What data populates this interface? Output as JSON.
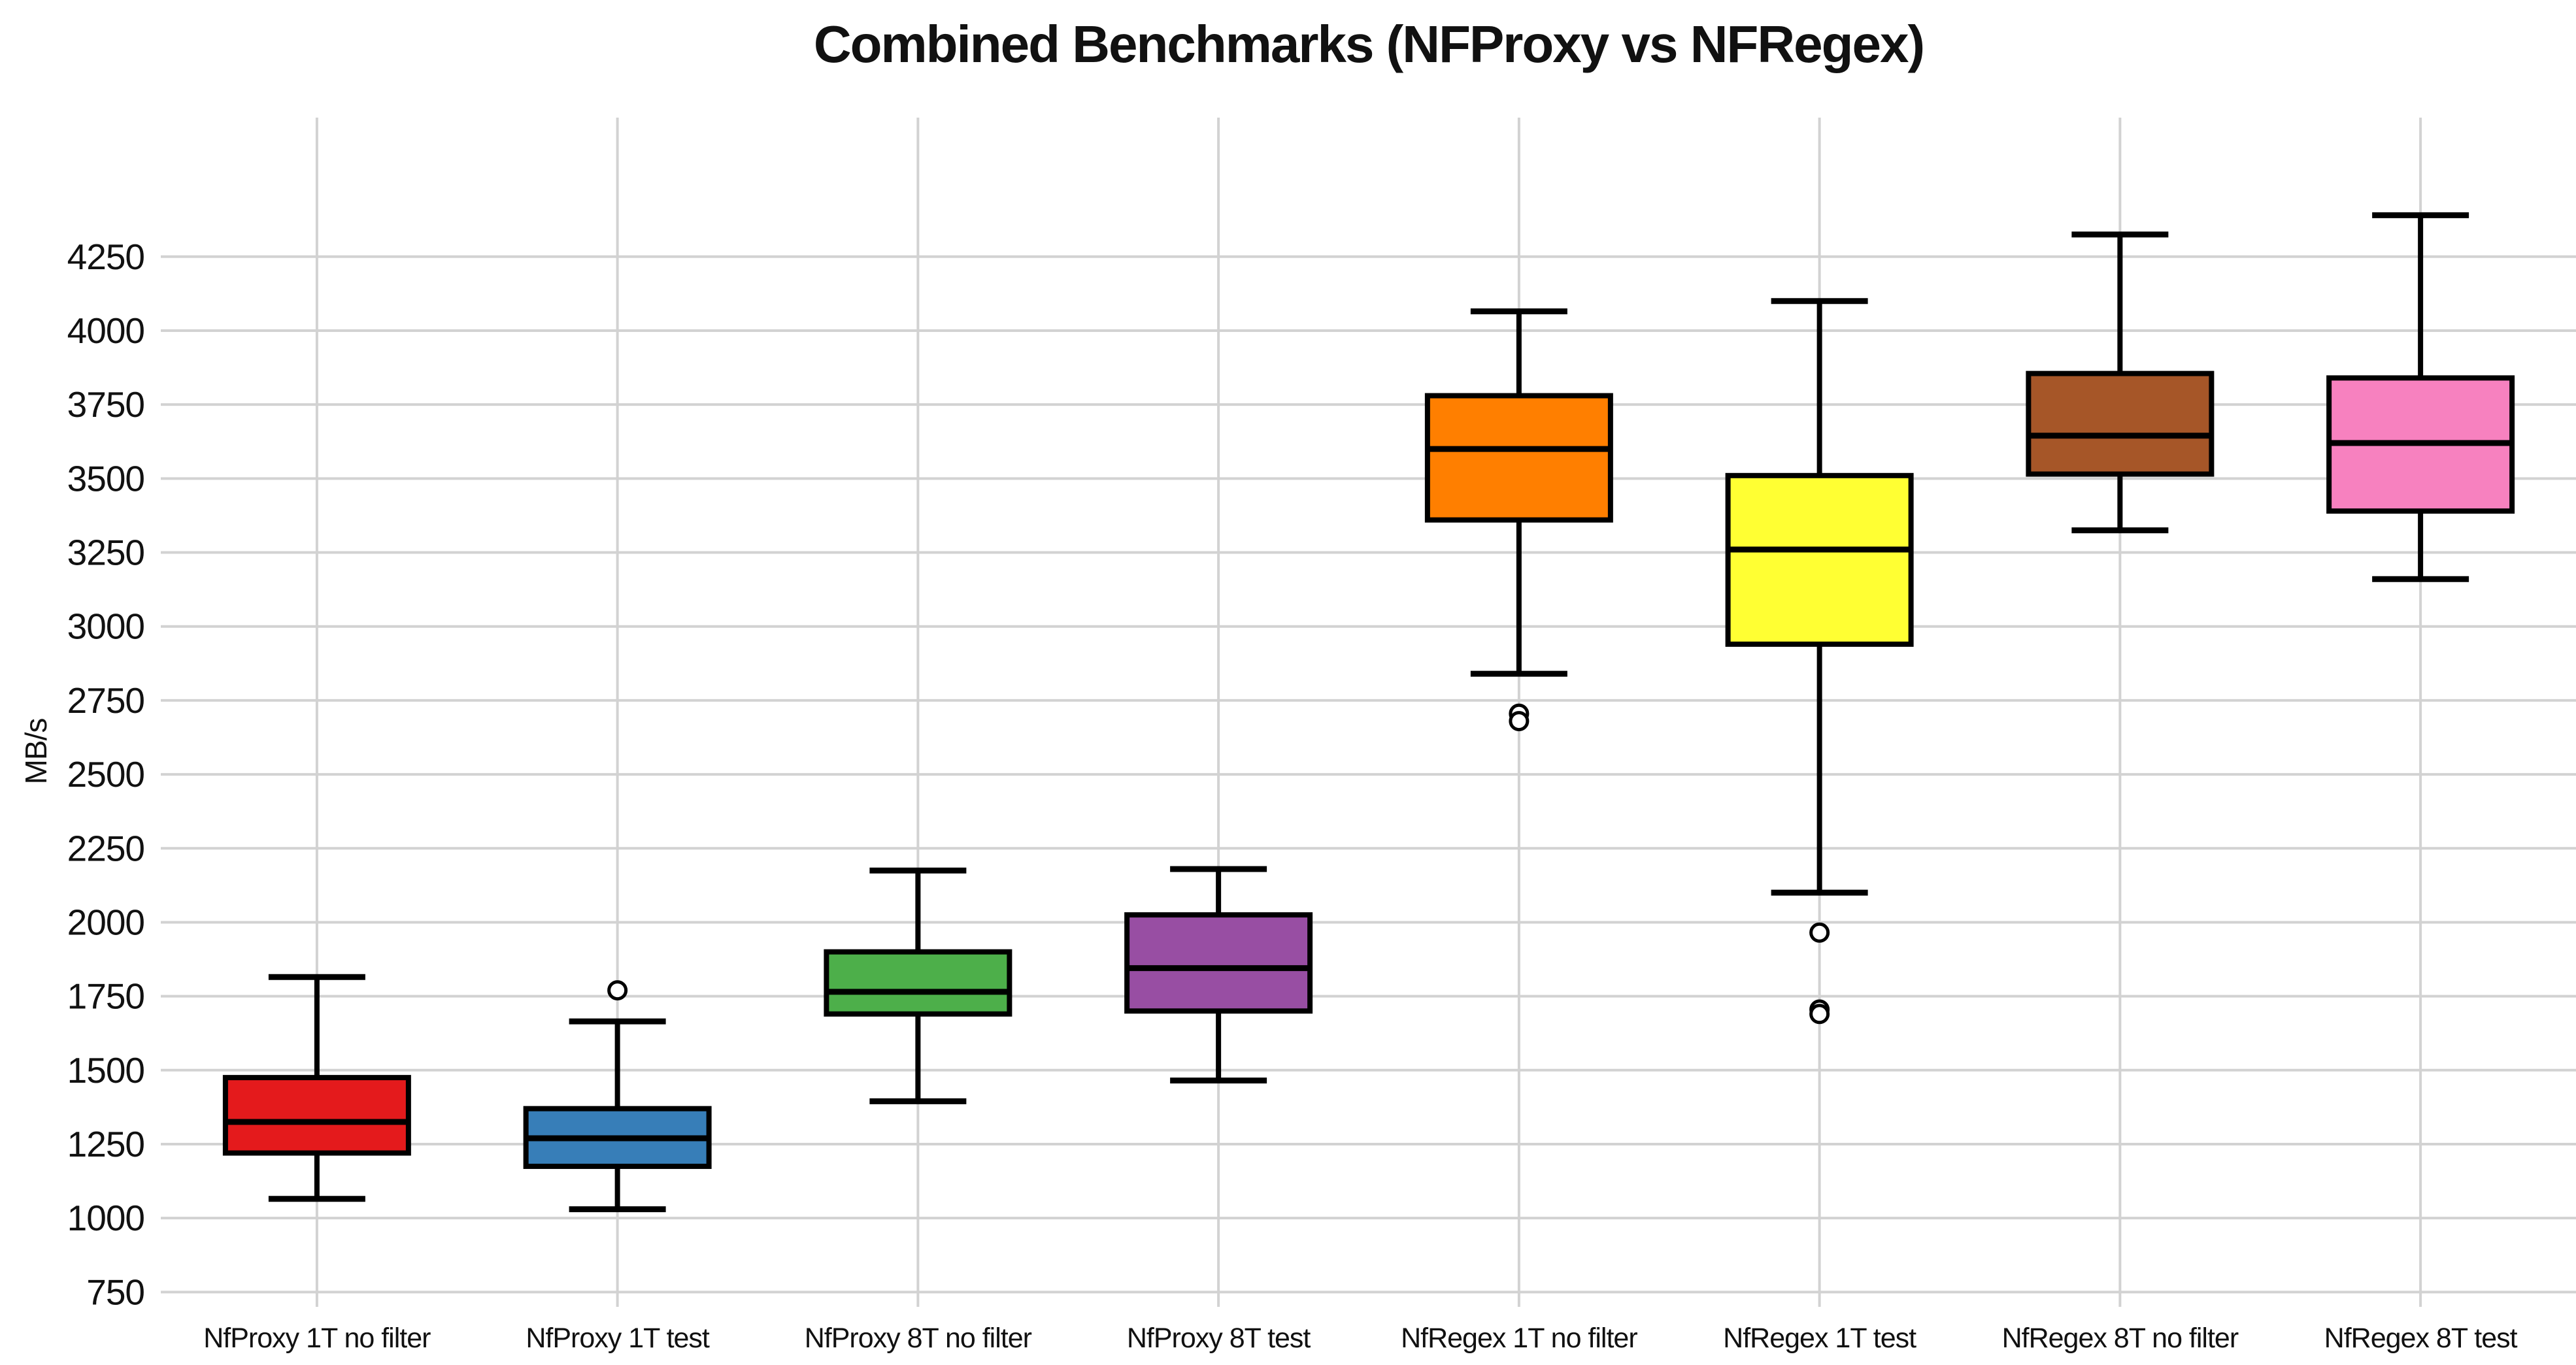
{
  "chart_data": {
    "type": "boxplot",
    "title": "Combined Benchmarks (NFProxy vs NFRegex)",
    "ylabel": "MB/s",
    "ylim": [
      700,
      4720
    ],
    "yticks": [
      750,
      1000,
      1250,
      1500,
      1750,
      2000,
      2250,
      2500,
      2750,
      3000,
      3250,
      3500,
      3750,
      4000,
      4250
    ],
    "grid": {
      "horizontal": true,
      "vertical": true,
      "color": "#d2d2d2"
    },
    "legend": "none",
    "series": [
      {
        "label": "NfProxy 1T no filter",
        "color": "#e41a1c",
        "whislo": 1065,
        "q1": 1220,
        "med": 1325,
        "q3": 1475,
        "whishi": 1815,
        "outliers": []
      },
      {
        "label": "NfProxy 1T test",
        "color": "#377eb8",
        "whislo": 1030,
        "q1": 1175,
        "med": 1270,
        "q3": 1370,
        "whishi": 1665,
        "outliers": [
          1770
        ]
      },
      {
        "label": "NfProxy 8T no filter",
        "color": "#4daf4a",
        "whislo": 1395,
        "q1": 1690,
        "med": 1765,
        "q3": 1900,
        "whishi": 2175,
        "outliers": []
      },
      {
        "label": "NfProxy 8T test",
        "color": "#984ea3",
        "whislo": 1465,
        "q1": 1700,
        "med": 1845,
        "q3": 2025,
        "whishi": 2180,
        "outliers": []
      },
      {
        "label": "NfRegex 1T no filter",
        "color": "#ff7f00",
        "whislo": 2840,
        "q1": 3360,
        "med": 3600,
        "q3": 3780,
        "whishi": 4065,
        "outliers": [
          2705,
          2680
        ]
      },
      {
        "label": "NfRegex 1T test",
        "color": "#ffff33",
        "whislo": 2100,
        "q1": 2940,
        "med": 3260,
        "q3": 3510,
        "whishi": 4100,
        "outliers": [
          1965,
          1705,
          1690
        ]
      },
      {
        "label": "NfRegex 8T no filter",
        "color": "#a65628",
        "whislo": 3325,
        "q1": 3515,
        "med": 3645,
        "q3": 3855,
        "whishi": 4325,
        "outliers": []
      },
      {
        "label": "NfRegex 8T test",
        "color": "#f781bf",
        "whislo": 3160,
        "q1": 3390,
        "med": 3620,
        "q3": 3840,
        "whishi": 4390,
        "outliers": []
      }
    ]
  }
}
